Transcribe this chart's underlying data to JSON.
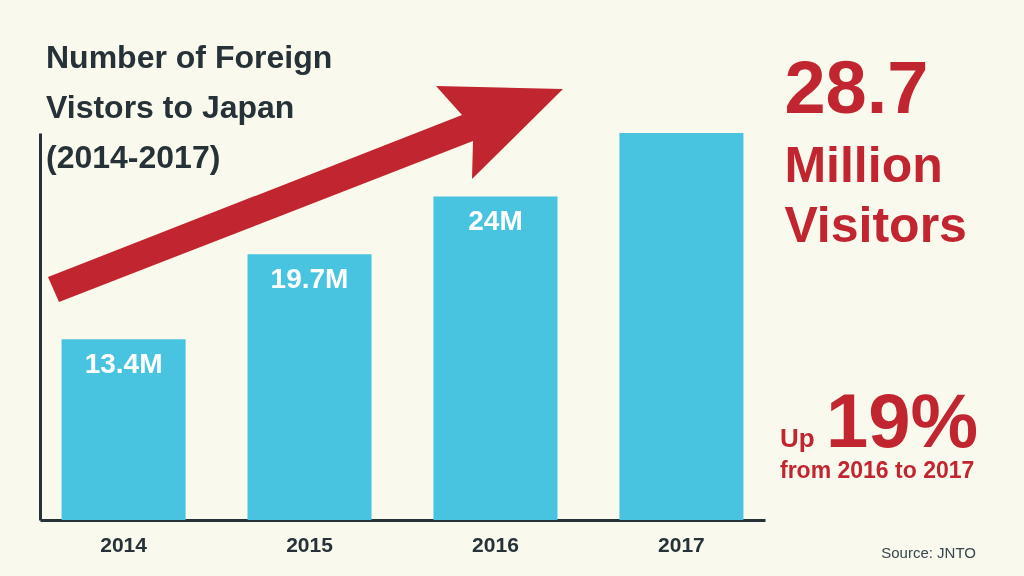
{
  "chart_data": {
    "type": "bar",
    "title": "Number of Foreign\nVistors to Japan\n(2014-2017)",
    "categories": [
      "2014",
      "2015",
      "2016",
      "2017"
    ],
    "values": [
      13.4,
      19.7,
      24,
      28.7
    ],
    "color": "#48c3e0",
    "value_labels": [
      "13.4M",
      "19.7M",
      "24M",
      null
    ],
    "ylim": [
      0,
      28.7
    ],
    "tick_labels": "x",
    "annotations": [
      {
        "text": "28.7\nMillion\nVisitors",
        "x": "2017",
        "y": 28.7
      },
      "Up",
      "19%",
      "from 2016 to 2017",
      "Source: JNTO"
    ]
  }
}
